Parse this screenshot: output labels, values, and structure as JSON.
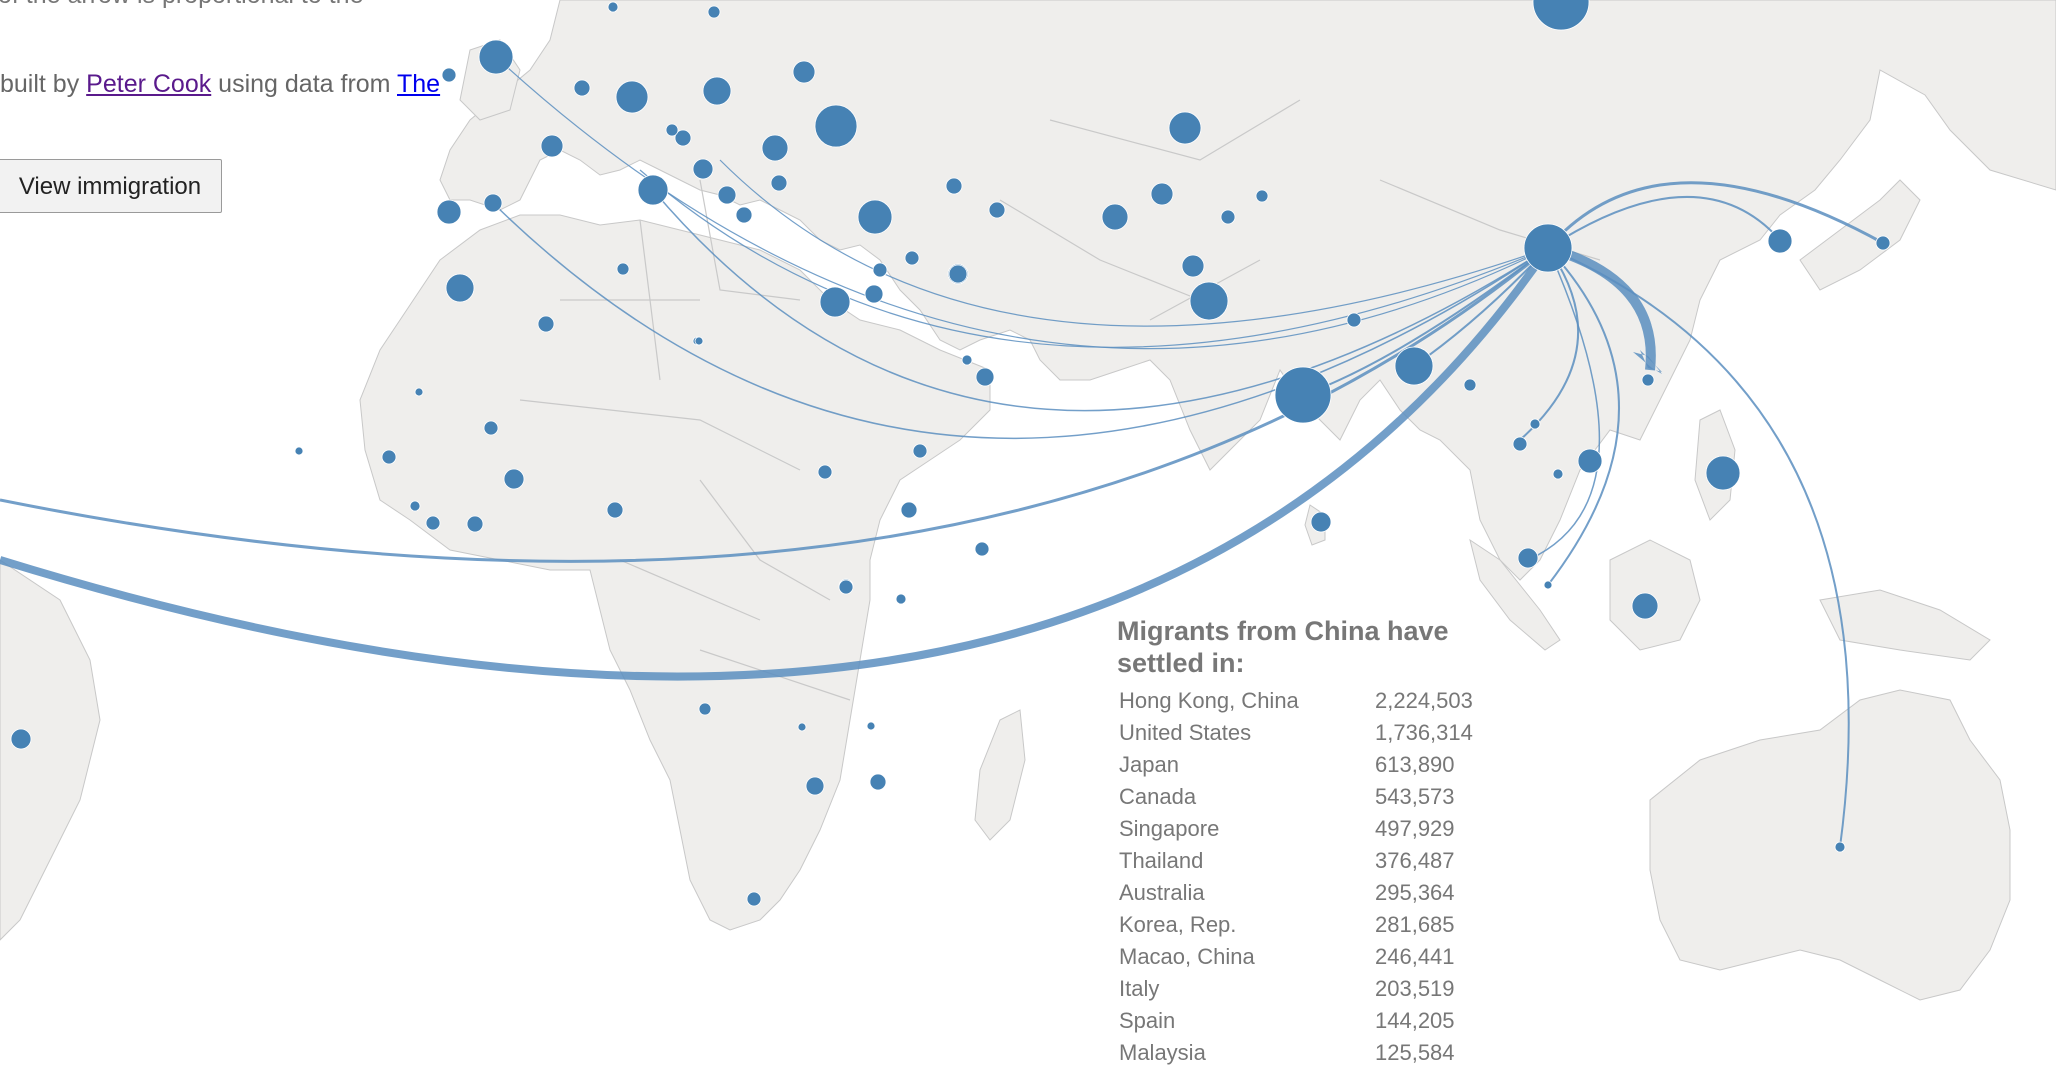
{
  "intro": {
    "line1": "of the arrow is proportional to the",
    "built_prefix": "built by ",
    "author_link": "Peter Cook",
    "built_middle": " using data from ",
    "source_link": "The"
  },
  "buttons": {
    "view_immigration": "View immigration"
  },
  "tooltip": {
    "title": "Migrants from China have settled in:",
    "rows": [
      {
        "country": "Hong Kong, China",
        "value": "2,224,503"
      },
      {
        "country": "United States",
        "value": "1,736,314"
      },
      {
        "country": "Japan",
        "value": "613,890"
      },
      {
        "country": "Canada",
        "value": "543,573"
      },
      {
        "country": "Singapore",
        "value": "497,929"
      },
      {
        "country": "Thailand",
        "value": "376,487"
      },
      {
        "country": "Australia",
        "value": "295,364"
      },
      {
        "country": "Korea, Rep.",
        "value": "281,685"
      },
      {
        "country": "Macao, China",
        "value": "246,441"
      },
      {
        "country": "Italy",
        "value": "203,519"
      },
      {
        "country": "Spain",
        "value": "144,205"
      },
      {
        "country": "Malaysia",
        "value": "125,584"
      }
    ]
  },
  "colors": {
    "bubble": "#4682b4",
    "arc": "#5b8ec0",
    "land": "#efeeec"
  }
}
